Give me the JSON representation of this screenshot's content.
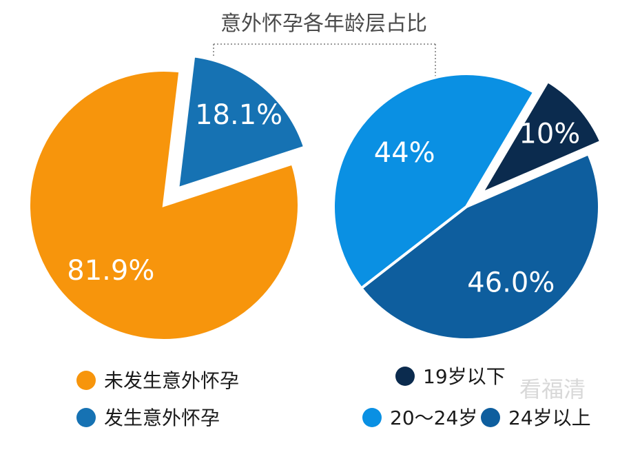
{
  "chart_data": [
    {
      "type": "pie",
      "title": "意外怀孕各年龄层占比",
      "slices": [
        {
          "label": "未发生意外怀孕",
          "value": 81.9,
          "display": "81.9%",
          "color": "#F7950C",
          "exploded": false
        },
        {
          "label": "发生意外怀孕",
          "value": 18.1,
          "display": "18.1%",
          "color": "#1672B3",
          "exploded": true
        }
      ],
      "legend": [
        {
          "label": "未发生意外怀孕",
          "color": "#F7950C"
        },
        {
          "label": "发生意外怀孕",
          "color": "#1672B3"
        }
      ]
    },
    {
      "type": "pie",
      "slices": [
        {
          "label": "19岁以下",
          "value": 10,
          "display": "10%",
          "color": "#0B2B4E",
          "exploded": true
        },
        {
          "label": "24岁以上",
          "value": 46.0,
          "display": "46.0%",
          "color": "#0E5E9E",
          "exploded": false
        },
        {
          "label": "20～24岁",
          "value": 44,
          "display": "44%",
          "color": "#0A90E3",
          "exploded": false
        }
      ],
      "legend": [
        {
          "label": "19岁以下",
          "color": "#0B2B4E"
        },
        {
          "label": "20～24岁",
          "color": "#0A90E3"
        },
        {
          "label": "24岁以上",
          "color": "#0E5E9E"
        }
      ]
    }
  ],
  "watermark": "看福清"
}
